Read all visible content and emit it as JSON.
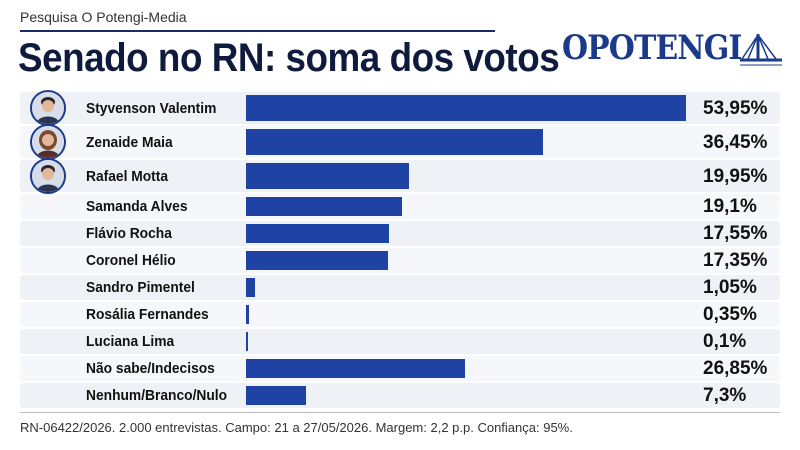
{
  "header": {
    "source": "Pesquisa O Potengi-Media",
    "title": "Senado no RN: soma dos votos"
  },
  "logo": {
    "text": "OPOTENGI",
    "icon": "bridge-logo-icon"
  },
  "colors": {
    "bar": "#1e43a4",
    "title": "#0f1b3d",
    "logo": "#1c3a8c"
  },
  "chart_data": {
    "type": "bar",
    "orientation": "horizontal",
    "title": "Senado no RN: soma dos votos",
    "xlabel": "",
    "ylabel": "",
    "xlim": [
      0,
      55
    ],
    "grid": false,
    "legend": "none",
    "categories": [
      "Styvenson Valentim",
      "Zenaide Maia",
      "Rafael Motta",
      "Samanda Alves",
      "Flávio Rocha",
      "Coronel Hélio",
      "Sandro Pimentel",
      "Rosália Fernandes",
      "Luciana Lima",
      "Não sabe/Indecisos",
      "Nenhum/Branco/Nulo"
    ],
    "values": [
      53.95,
      36.45,
      19.95,
      19.1,
      17.55,
      17.35,
      1.05,
      0.35,
      0.1,
      26.85,
      7.3
    ],
    "labels": [
      "53,95%",
      "36,45%",
      "19,95%",
      "19,1%",
      "17,55%",
      "17,35%",
      "1,05%",
      "0,35%",
      "0,1%",
      "26,85%",
      "7,3%"
    ],
    "avatars": [
      "avatar-male-suit-icon",
      "avatar-female-icon",
      "avatar-male-smiling-icon",
      "",
      "",
      "",
      "",
      "",
      "",
      "",
      ""
    ]
  },
  "footer": {
    "note": "RN-06422/2026. 2.000 entrevistas. Campo: 21 a 27/05/2026. Margem: 2,2 p.p. Confiança: 95%."
  }
}
